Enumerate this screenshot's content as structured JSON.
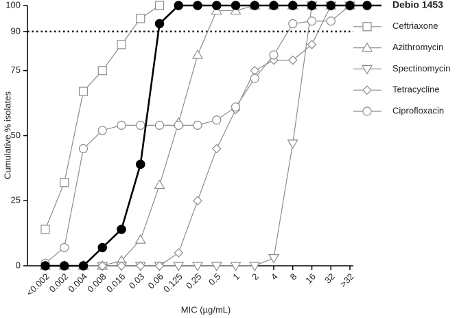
{
  "chart_data": {
    "type": "line",
    "x_label": "MIC (µg/mL)",
    "y_label": "Cumulative % isolates",
    "categories": [
      "<0.002",
      "0.002",
      "0.004",
      "0.008",
      "0.016",
      "0.03",
      "0.06",
      "0.125",
      "0.25",
      "0.5",
      "1",
      "2",
      "4",
      "8",
      "16",
      "32",
      ">32"
    ],
    "ylim": [
      0,
      100
    ],
    "yticks": [
      0,
      25,
      50,
      75,
      90,
      100
    ],
    "reference_line": 90,
    "series": [
      {
        "name": "Debio 1453",
        "color": "#000000",
        "marker": "circle",
        "filled": true,
        "values": [
          0,
          0,
          0,
          7,
          14,
          39,
          93,
          100,
          100,
          100,
          100,
          100,
          100,
          100,
          100,
          100,
          100
        ]
      },
      {
        "name": "Ceftriaxone",
        "color": "#8c8c8c",
        "marker": "square",
        "filled": false,
        "values": [
          14,
          32,
          67,
          75,
          85,
          95,
          100,
          null,
          null,
          null,
          null,
          null,
          null,
          null,
          null,
          null,
          null
        ]
      },
      {
        "name": "Azithromycin",
        "color": "#8c8c8c",
        "marker": "triangle-up",
        "filled": false,
        "values": [
          0,
          0,
          0,
          0,
          2,
          10,
          31,
          55,
          81,
          98,
          98,
          100,
          100,
          100,
          100,
          100,
          100
        ]
      },
      {
        "name": "Spectinomycin",
        "color": "#8c8c8c",
        "marker": "triangle-down",
        "filled": false,
        "values": [
          null,
          null,
          null,
          0,
          0,
          0,
          0,
          0,
          0,
          0,
          0,
          0,
          3,
          47,
          100,
          100,
          100
        ]
      },
      {
        "name": "Tetracycline",
        "color": "#8c8c8c",
        "marker": "diamond",
        "filled": false,
        "values": [
          null,
          null,
          null,
          0,
          0,
          0,
          0,
          5,
          25,
          45,
          60,
          75,
          79,
          79,
          85,
          100,
          100
        ]
      },
      {
        "name": "Ciprofloxacin",
        "color": "#8c8c8c",
        "marker": "circle",
        "filled": false,
        "values": [
          1,
          7,
          45,
          52,
          54,
          54,
          54,
          54,
          54,
          56,
          61,
          72,
          81,
          93,
          94,
          94,
          100
        ]
      }
    ]
  }
}
